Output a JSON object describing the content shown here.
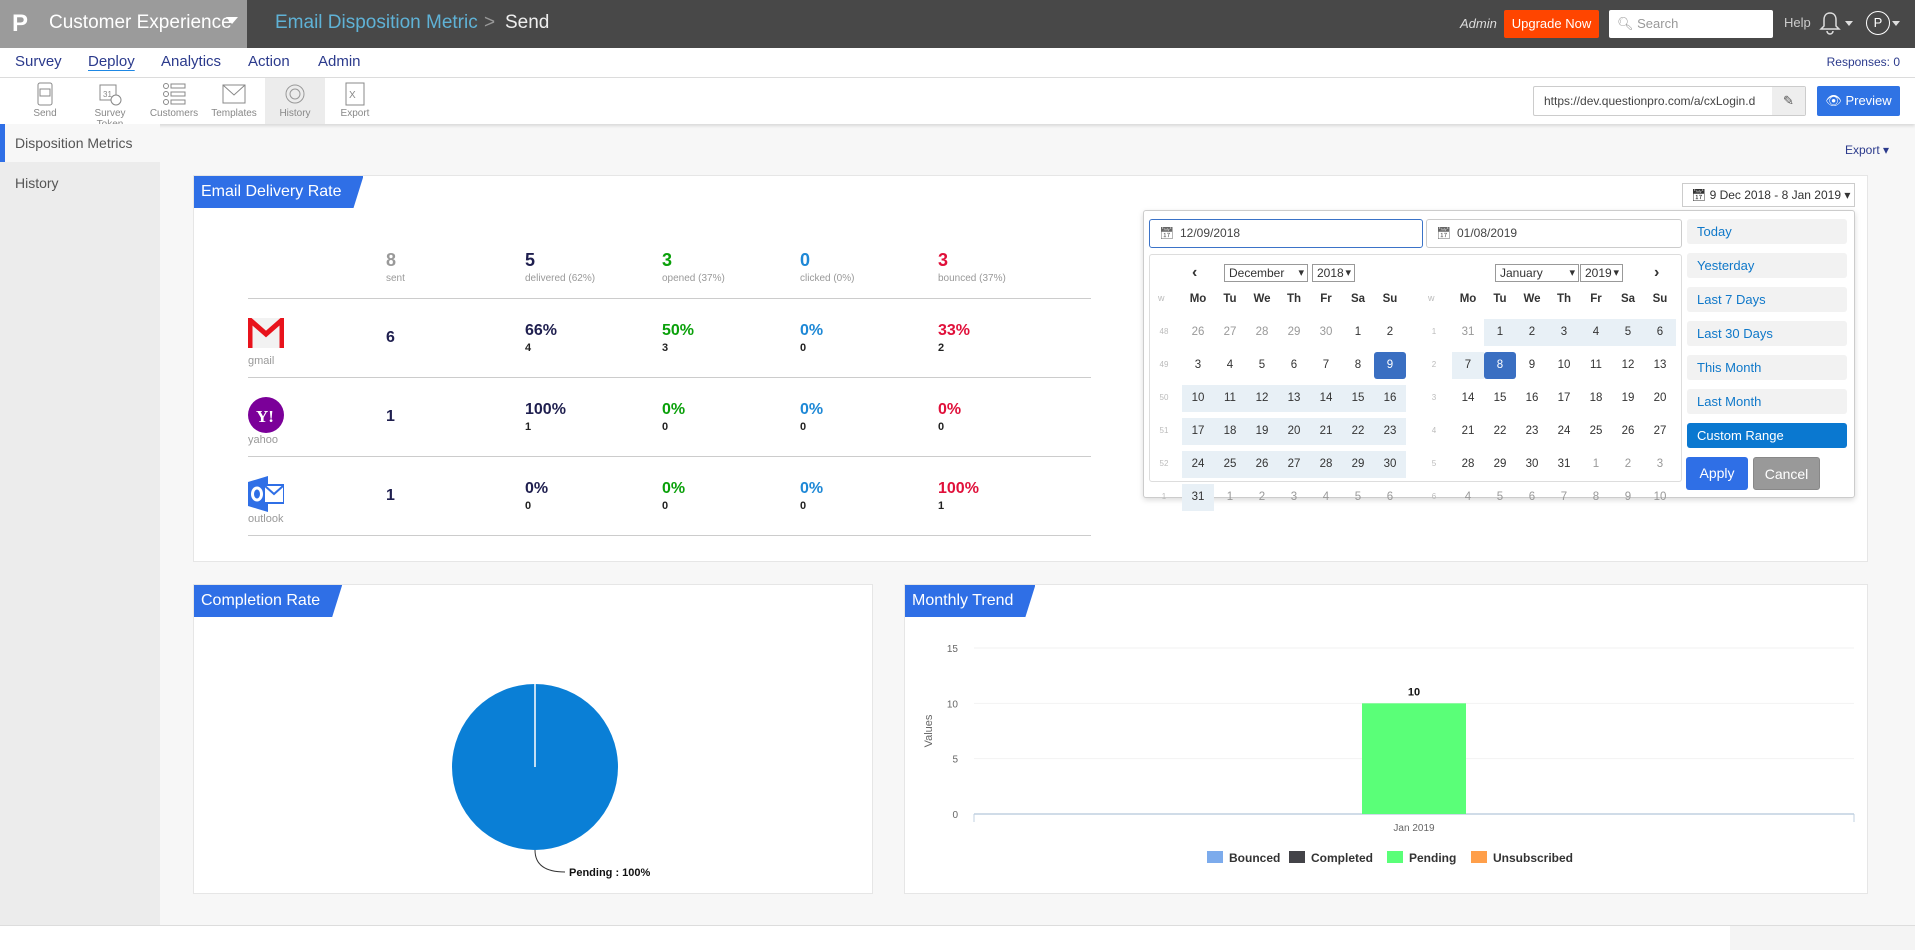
{
  "topbar": {
    "logo": "P",
    "brand": "Customer Experience",
    "crumb": "Email Disposition Metric",
    "crumb_sep": ">",
    "page": "Send",
    "admin": "Admin",
    "upgrade": "Upgrade Now",
    "search_placeholder": "Search",
    "help": "Help",
    "avatar": "P"
  },
  "nav": {
    "items": [
      "Survey",
      "Deploy",
      "Analytics",
      "Action",
      "Admin"
    ],
    "active": "Deploy",
    "responses": "Responses: 0"
  },
  "toolbar": {
    "items": [
      "Send",
      "Survey Token",
      "Customers",
      "Templates",
      "History",
      "Export"
    ],
    "active": "History",
    "url": "https://dev.questionpro.com/a/cxLogin.d",
    "preview": "Preview"
  },
  "sidebar": {
    "items": [
      "Disposition Metrics",
      "History"
    ],
    "active": "Disposition Metrics"
  },
  "export_label": "Export",
  "delivery": {
    "title": "Email Delivery Rate",
    "header": [
      {
        "num": "8",
        "label": "sent",
        "color": "#999999"
      },
      {
        "num": "5",
        "label": "delivered (62%)",
        "color": "#1f1f4f"
      },
      {
        "num": "3",
        "label": "opened (37%)",
        "color": "#0aa00a"
      },
      {
        "num": "0",
        "label": "clicked (0%)",
        "color": "#1e88d6"
      },
      {
        "num": "3",
        "label": "bounced (37%)",
        "color": "#e0103a"
      }
    ],
    "rows": [
      {
        "provider": "gmail",
        "sent": "6",
        "cells": [
          {
            "pct": "66%",
            "n": "4"
          },
          {
            "pct": "50%",
            "n": "3"
          },
          {
            "pct": "0%",
            "n": "0"
          },
          {
            "pct": "33%",
            "n": "2"
          }
        ]
      },
      {
        "provider": "yahoo",
        "sent": "1",
        "cells": [
          {
            "pct": "100%",
            "n": "1"
          },
          {
            "pct": "0%",
            "n": "0"
          },
          {
            "pct": "0%",
            "n": "0"
          },
          {
            "pct": "0%",
            "n": "0"
          }
        ]
      },
      {
        "provider": "outlook",
        "sent": "1",
        "cells": [
          {
            "pct": "0%",
            "n": "0"
          },
          {
            "pct": "0%",
            "n": "0"
          },
          {
            "pct": "0%",
            "n": "0"
          },
          {
            "pct": "100%",
            "n": "1"
          }
        ]
      }
    ]
  },
  "datepicker": {
    "button": "9 Dec 2018 - 8 Jan 2019",
    "start": "12/09/2018",
    "end": "01/08/2019",
    "left": {
      "month": "December",
      "year": "2018"
    },
    "right": {
      "month": "January",
      "year": "2019"
    },
    "week_label": "w",
    "days": [
      "Mo",
      "Tu",
      "We",
      "Th",
      "Fr",
      "Sa",
      "Su"
    ],
    "left_weeks": [
      [
        "48",
        "26",
        "27",
        "28",
        "29",
        "30",
        "1",
        "2"
      ],
      [
        "49",
        "3",
        "4",
        "5",
        "6",
        "7",
        "8",
        "9"
      ],
      [
        "50",
        "10",
        "11",
        "12",
        "13",
        "14",
        "15",
        "16"
      ],
      [
        "51",
        "17",
        "18",
        "19",
        "20",
        "21",
        "22",
        "23"
      ],
      [
        "52",
        "24",
        "25",
        "26",
        "27",
        "28",
        "29",
        "30"
      ],
      [
        "1",
        "31",
        "1",
        "2",
        "3",
        "4",
        "5",
        "6"
      ]
    ],
    "right_weeks": [
      [
        "1",
        "31",
        "1",
        "2",
        "3",
        "4",
        "5",
        "6"
      ],
      [
        "2",
        "7",
        "8",
        "9",
        "10",
        "11",
        "12",
        "13"
      ],
      [
        "3",
        "14",
        "15",
        "16",
        "17",
        "18",
        "19",
        "20"
      ],
      [
        "4",
        "21",
        "22",
        "23",
        "24",
        "25",
        "26",
        "27"
      ],
      [
        "5",
        "28",
        "29",
        "30",
        "31",
        "1",
        "2",
        "3"
      ],
      [
        "6",
        "4",
        "5",
        "6",
        "7",
        "8",
        "9",
        "10"
      ]
    ],
    "ranges": [
      "Today",
      "Yesterday",
      "Last 7 Days",
      "Last 30 Days",
      "This Month",
      "Last Month",
      "Custom Range"
    ],
    "active_range": "Custom Range",
    "apply": "Apply",
    "cancel": "Cancel"
  },
  "completion": {
    "title": "Completion Rate"
  },
  "trend": {
    "title": "Monthly Trend"
  },
  "chart_data": [
    {
      "type": "pie",
      "slices": [
        {
          "name": "Pending",
          "value": 100
        }
      ],
      "labels": [
        "Pending : 100%"
      ],
      "colors": [
        "#0a7fd6"
      ]
    },
    {
      "type": "bar",
      "categories": [
        "Jan 2019"
      ],
      "series": [
        {
          "name": "Bounced",
          "values": [
            0
          ],
          "color": "#7cabec"
        },
        {
          "name": "Completed",
          "values": [
            0
          ],
          "color": "#434348"
        },
        {
          "name": "Pending",
          "values": [
            10
          ],
          "color": "#5aff78"
        },
        {
          "name": "Unsubscribed",
          "values": [
            0
          ],
          "color": "#ff9f4a"
        }
      ],
      "data_labels": [
        "10"
      ],
      "ylabel": "Values",
      "yticks": [
        "0",
        "5",
        "10",
        "15"
      ],
      "ylim": [
        0,
        15
      ],
      "legend": "bottom"
    }
  ]
}
